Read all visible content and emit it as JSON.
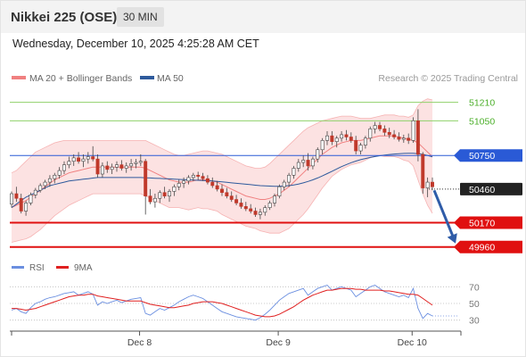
{
  "header": {
    "symbol": "Nikkei 225 (OSE)",
    "timeframe": "30 MIN"
  },
  "timestamp": "Wednesday, December 10, 2025 4:25:28 AM CET",
  "legend": {
    "bollinger": {
      "label": "MA 20 + Bollinger Bands",
      "color": "#f08080"
    },
    "ma50": {
      "label": "MA 50",
      "color": "#2e5a9c"
    },
    "credit": "Research © 2025 Trading Central"
  },
  "rsi_legend": {
    "rsi": {
      "label": "RSI",
      "color": "#6b8fe0"
    },
    "ma9": {
      "label": "9MA",
      "color": "#e02020"
    }
  },
  "chart_data": [
    {
      "type": "candlestick",
      "ylim": [
        49850,
        51330
      ],
      "x_ticks": [
        "Dec 8",
        "Dec 9",
        "Dec 10"
      ],
      "levels": [
        {
          "value": 51210,
          "label": "51210",
          "color": "#8fd16a",
          "style": "line"
        },
        {
          "value": 51050,
          "label": "51050",
          "color": "#8fd16a",
          "style": "line"
        },
        {
          "value": 50750,
          "label": "50750",
          "color": "#2a5ad6",
          "style": "box"
        },
        {
          "value": 50460,
          "label": "50460",
          "color": "#222222",
          "style": "box"
        },
        {
          "value": 50170,
          "label": "50170",
          "color": "#e01010",
          "style": "box"
        },
        {
          "value": 49960,
          "label": "49960",
          "color": "#e01010",
          "style": "box"
        }
      ],
      "ohlc": [
        [
          50330,
          50440,
          50300,
          50420
        ],
        [
          50420,
          50480,
          50350,
          50380
        ],
        [
          50380,
          50420,
          50250,
          50270
        ],
        [
          50270,
          50360,
          50230,
          50340
        ],
        [
          50340,
          50430,
          50320,
          50410
        ],
        [
          50410,
          50470,
          50380,
          50450
        ],
        [
          50450,
          50510,
          50430,
          50490
        ],
        [
          50490,
          50540,
          50460,
          50520
        ],
        [
          50520,
          50580,
          50480,
          50550
        ],
        [
          50550,
          50600,
          50510,
          50580
        ],
        [
          50580,
          50650,
          50550,
          50620
        ],
        [
          50620,
          50700,
          50590,
          50670
        ],
        [
          50670,
          50740,
          50640,
          50700
        ],
        [
          50700,
          50760,
          50660,
          50730
        ],
        [
          50730,
          50780,
          50680,
          50700
        ],
        [
          50700,
          50760,
          50650,
          50720
        ],
        [
          50720,
          50780,
          50680,
          50740
        ],
        [
          50740,
          50830,
          50700,
          50720
        ],
        [
          50720,
          50760,
          50560,
          50590
        ],
        [
          50590,
          50690,
          50560,
          50660
        ],
        [
          50660,
          50700,
          50600,
          50630
        ],
        [
          50630,
          50680,
          50590,
          50650
        ],
        [
          50650,
          50700,
          50610,
          50670
        ],
        [
          50670,
          50710,
          50620,
          50640
        ],
        [
          50640,
          50690,
          50600,
          50660
        ],
        [
          50660,
          50720,
          50620,
          50680
        ],
        [
          50680,
          50720,
          50640,
          50690
        ],
        [
          50690,
          50760,
          50660,
          50700
        ],
        [
          50700,
          50720,
          50240,
          50400
        ],
        [
          50400,
          50460,
          50330,
          50350
        ],
        [
          50350,
          50420,
          50300,
          50380
        ],
        [
          50380,
          50450,
          50340,
          50430
        ],
        [
          50430,
          50480,
          50380,
          50400
        ],
        [
          50400,
          50460,
          50350,
          50440
        ],
        [
          50440,
          50500,
          50400,
          50480
        ],
        [
          50480,
          50540,
          50450,
          50510
        ],
        [
          50510,
          50560,
          50470,
          50530
        ],
        [
          50530,
          50580,
          50500,
          50560
        ],
        [
          50560,
          50600,
          50530,
          50580
        ],
        [
          50580,
          50610,
          50540,
          50570
        ],
        [
          50570,
          50600,
          50530,
          50550
        ],
        [
          50550,
          50580,
          50500,
          50520
        ],
        [
          50520,
          50560,
          50470,
          50490
        ],
        [
          50490,
          50530,
          50440,
          50460
        ],
        [
          50460,
          50500,
          50400,
          50430
        ],
        [
          50430,
          50470,
          50380,
          50400
        ],
        [
          50400,
          50440,
          50350,
          50370
        ],
        [
          50370,
          50410,
          50320,
          50340
        ],
        [
          50340,
          50380,
          50290,
          50310
        ],
        [
          50310,
          50350,
          50270,
          50290
        ],
        [
          50290,
          50330,
          50250,
          50270
        ],
        [
          50270,
          50300,
          50220,
          50240
        ],
        [
          50240,
          50290,
          50200,
          50260
        ],
        [
          50260,
          50320,
          50230,
          50300
        ],
        [
          50300,
          50360,
          50280,
          50340
        ],
        [
          50340,
          50420,
          50310,
          50400
        ],
        [
          50400,
          50500,
          50380,
          50480
        ],
        [
          50480,
          50540,
          50450,
          50520
        ],
        [
          50520,
          50600,
          50480,
          50580
        ],
        [
          50580,
          50660,
          50550,
          50640
        ],
        [
          50640,
          50720,
          50610,
          50690
        ],
        [
          50690,
          50750,
          50650,
          50710
        ],
        [
          50710,
          50770,
          50620,
          50660
        ],
        [
          50660,
          50740,
          50630,
          50720
        ],
        [
          50720,
          50820,
          50690,
          50800
        ],
        [
          50800,
          50900,
          50760,
          50880
        ],
        [
          50880,
          50960,
          50840,
          50920
        ],
        [
          50920,
          50960,
          50840,
          50870
        ],
        [
          50870,
          50920,
          50820,
          50900
        ],
        [
          50900,
          50960,
          50870,
          50930
        ],
        [
          50930,
          50970,
          50880,
          50910
        ],
        [
          50910,
          50950,
          50860,
          50880
        ],
        [
          50880,
          50920,
          50760,
          50790
        ],
        [
          50790,
          50860,
          50760,
          50840
        ],
        [
          50840,
          50920,
          50810,
          50900
        ],
        [
          50900,
          51000,
          50870,
          50980
        ],
        [
          50980,
          51040,
          50940,
          51010
        ],
        [
          51010,
          51040,
          50960,
          50980
        ],
        [
          50980,
          51010,
          50920,
          50950
        ],
        [
          50950,
          50990,
          50900,
          50930
        ],
        [
          50930,
          50970,
          50890,
          50910
        ],
        [
          50910,
          50950,
          50870,
          50890
        ],
        [
          50890,
          50930,
          50860,
          50900
        ],
        [
          50900,
          50940,
          50850,
          50880
        ],
        [
          50880,
          51080,
          50860,
          51050
        ],
        [
          51050,
          51150,
          50700,
          50760
        ],
        [
          50760,
          50780,
          50420,
          50470
        ],
        [
          50470,
          50560,
          50390,
          50520
        ],
        [
          50520,
          50560,
          50450,
          50480
        ]
      ],
      "bollinger": {
        "mid": [
          50300,
          50320,
          50340,
          50360,
          50390,
          50420,
          50450,
          50480,
          50510,
          50540,
          50560,
          50580,
          50600,
          50610,
          50620,
          50630,
          50640,
          50650,
          50650,
          50650,
          50650,
          50650,
          50650,
          50650,
          50650,
          50650,
          50650,
          50650,
          50640,
          50620,
          50600,
          50580,
          50560,
          50540,
          50530,
          50520,
          50520,
          50520,
          50530,
          50540,
          50540,
          50540,
          50530,
          50520,
          50500,
          50480,
          50460,
          50440,
          50420,
          50400,
          50390,
          50380,
          50370,
          50370,
          50380,
          50400,
          50420,
          50450,
          50480,
          50520,
          50560,
          50600,
          50640,
          50680,
          50720,
          50760,
          50790,
          50820,
          50840,
          50860,
          50870,
          50880,
          50880,
          50880,
          50890,
          50900,
          50910,
          50920,
          50920,
          50920,
          50920,
          50910,
          50900,
          50890,
          50880,
          50860,
          50820,
          50780,
          50740
        ],
        "upper": [
          50600,
          50620,
          50660,
          50700,
          50740,
          50780,
          50800,
          50820,
          50840,
          50860,
          50870,
          50880,
          50880,
          50880,
          50880,
          50880,
          50880,
          50880,
          50880,
          50880,
          50880,
          50880,
          50880,
          50880,
          50880,
          50880,
          50880,
          50880,
          50880,
          50860,
          50840,
          50820,
          50800,
          50780,
          50760,
          50750,
          50750,
          50760,
          50770,
          50780,
          50790,
          50790,
          50780,
          50770,
          50760,
          50740,
          50720,
          50700,
          50680,
          50660,
          50650,
          50640,
          50640,
          50650,
          50680,
          50720,
          50760,
          50800,
          50840,
          50880,
          50920,
          50960,
          50990,
          51010,
          51030,
          51050,
          51060,
          51070,
          51080,
          51090,
          51090,
          51090,
          51080,
          51070,
          51070,
          51070,
          51080,
          51090,
          51100,
          51100,
          51100,
          51090,
          51090,
          51080,
          51100,
          51180,
          51220,
          51240,
          51230
        ],
        "lower": [
          50000,
          50010,
          50020,
          50030,
          50050,
          50080,
          50110,
          50150,
          50190,
          50230,
          50260,
          50290,
          50320,
          50340,
          50360,
          50380,
          50400,
          50420,
          50420,
          50420,
          50420,
          50420,
          50420,
          50420,
          50420,
          50420,
          50420,
          50420,
          50400,
          50380,
          50360,
          50340,
          50320,
          50300,
          50300,
          50300,
          50290,
          50280,
          50290,
          50300,
          50290,
          50290,
          50280,
          50270,
          50240,
          50220,
          50200,
          50180,
          50160,
          50140,
          50130,
          50120,
          50100,
          50090,
          50080,
          50080,
          50080,
          50100,
          50120,
          50160,
          50200,
          50240,
          50290,
          50350,
          50410,
          50470,
          50520,
          50570,
          50600,
          50630,
          50650,
          50670,
          50680,
          50690,
          50710,
          50730,
          50740,
          50750,
          50740,
          50740,
          50740,
          50730,
          50710,
          50700,
          50660,
          50540,
          50420,
          50320,
          50250
        ]
      },
      "ma50": [
        50300,
        50330,
        50360,
        50390,
        50410,
        50430,
        50450,
        50470,
        50490,
        50500,
        50510,
        50520,
        50530,
        50535,
        50540,
        50545,
        50550,
        50555,
        50560,
        50560,
        50560,
        50560,
        50560,
        50560,
        50560,
        50560,
        50560,
        50560,
        50558,
        50556,
        50554,
        50552,
        50550,
        50548,
        50546,
        50544,
        50542,
        50540,
        50538,
        50536,
        50534,
        50532,
        50530,
        50526,
        50522,
        50518,
        50514,
        50510,
        50506,
        50502,
        50498,
        50494,
        50490,
        50488,
        50486,
        50484,
        50484,
        50486,
        50490,
        50496,
        50504,
        50514,
        50526,
        50540,
        50556,
        50574,
        50594,
        50614,
        50634,
        50654,
        50672,
        50688,
        50702,
        50714,
        50724,
        50733,
        50741,
        50748,
        50754,
        50759,
        50763,
        50766,
        50768,
        50769,
        50769,
        50766,
        50760,
        50750,
        50738
      ]
    },
    {
      "type": "line",
      "name": "RSI",
      "ylim": [
        20,
        80
      ],
      "levels": [
        70,
        50,
        30
      ],
      "rsi": [
        42,
        44,
        40,
        38,
        45,
        50,
        52,
        55,
        57,
        58,
        60,
        62,
        63,
        64,
        60,
        62,
        64,
        61,
        48,
        52,
        50,
        52,
        54,
        51,
        53,
        55,
        56,
        57,
        38,
        36,
        40,
        44,
        42,
        45,
        48,
        52,
        55,
        58,
        60,
        58,
        56,
        52,
        48,
        44,
        40,
        38,
        36,
        34,
        33,
        32,
        31,
        30,
        33,
        37,
        42,
        48,
        54,
        58,
        62,
        64,
        66,
        68,
        60,
        64,
        68,
        70,
        72,
        66,
        68,
        70,
        68,
        66,
        58,
        62,
        66,
        70,
        72,
        68,
        64,
        62,
        60,
        58,
        60,
        57,
        68,
        44,
        32,
        38,
        35
      ],
      "ma9": [
        44,
        44,
        43,
        42,
        43,
        44,
        46,
        48,
        50,
        52,
        54,
        56,
        58,
        59,
        60,
        60,
        61,
        61,
        59,
        58,
        57,
        56,
        55,
        54,
        53,
        53,
        53,
        53,
        51,
        49,
        48,
        47,
        46,
        45,
        45,
        46,
        47,
        48,
        50,
        51,
        52,
        52,
        52,
        51,
        50,
        48,
        46,
        44,
        42,
        40,
        38,
        36,
        35,
        34,
        34,
        35,
        37,
        40,
        43,
        46,
        50,
        54,
        57,
        60,
        62,
        64,
        66,
        66,
        67,
        68,
        68,
        68,
        67,
        67,
        66,
        66,
        66,
        66,
        65,
        65,
        64,
        63,
        62,
        61,
        61,
        60,
        56,
        52,
        48
      ]
    }
  ]
}
